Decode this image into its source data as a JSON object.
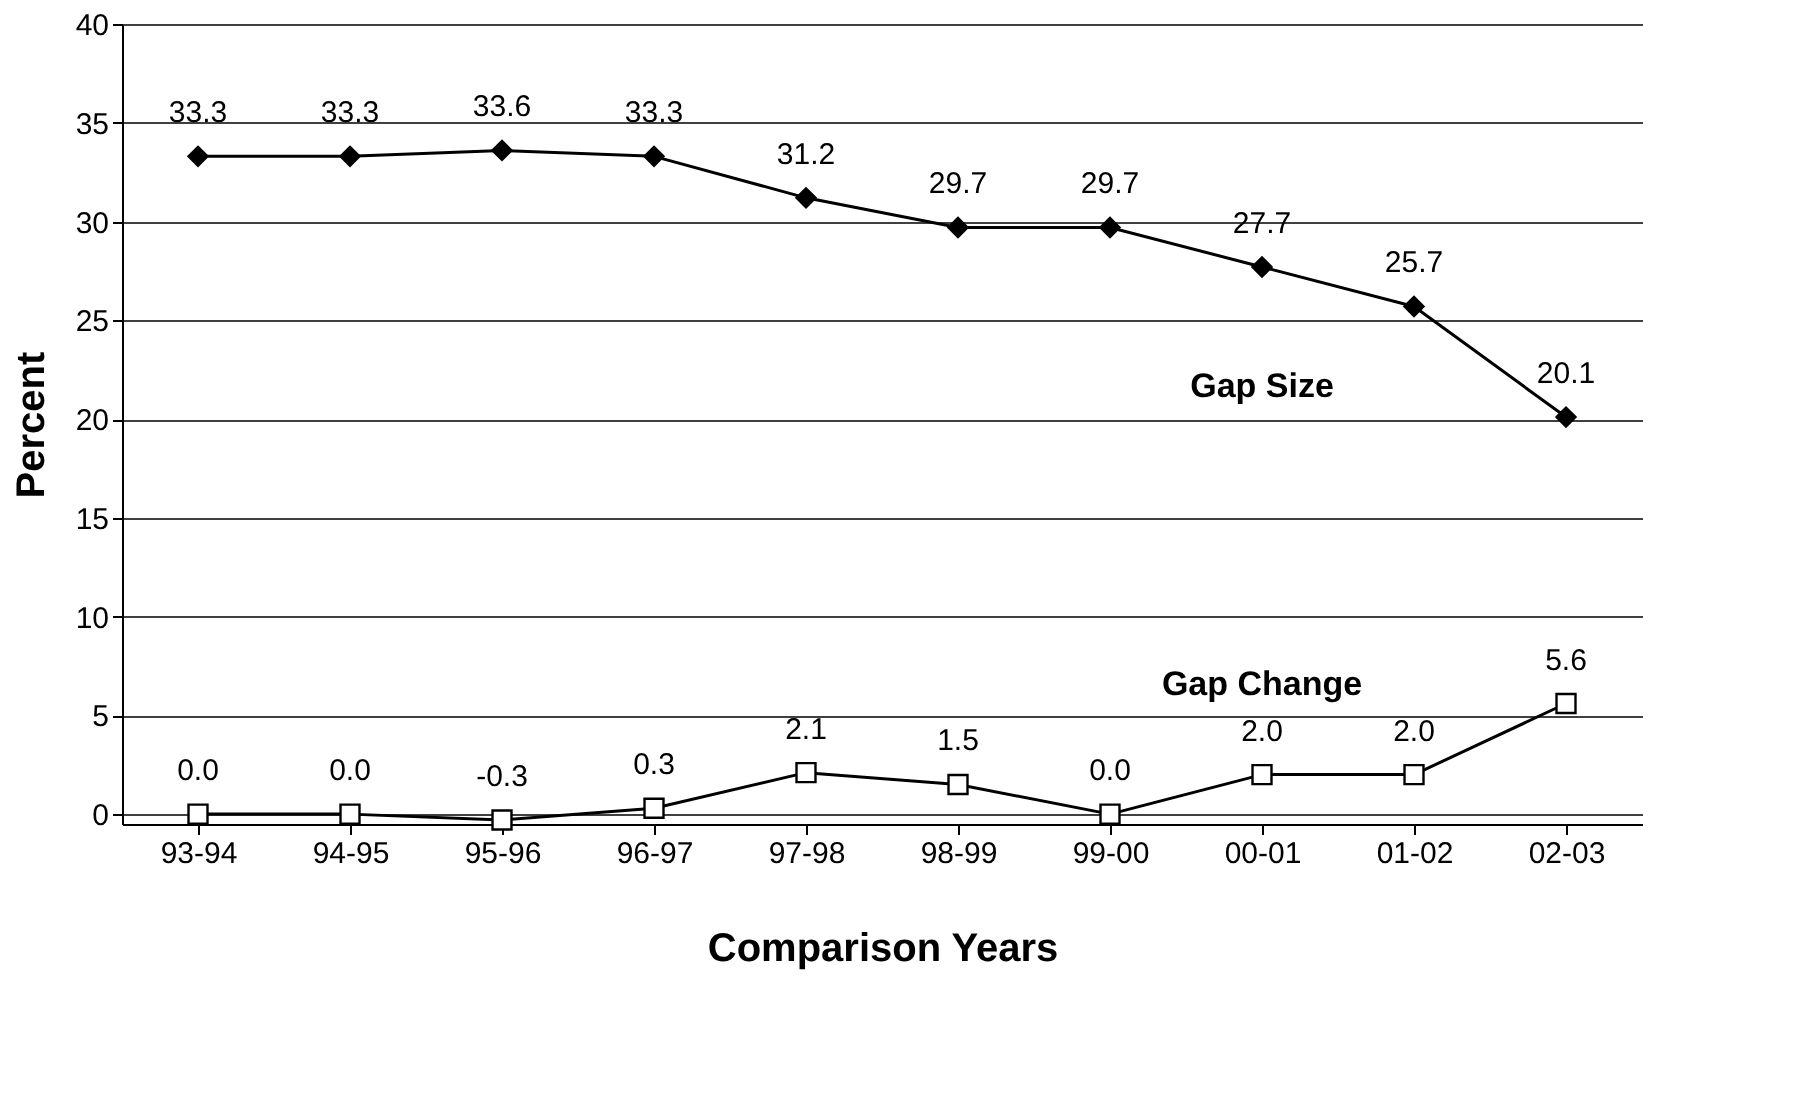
{
  "chart_data": {
    "type": "line",
    "xlabel": "Comparison Years",
    "ylabel": "Percent",
    "categories": [
      "93-94",
      "94-95",
      "95-96",
      "96-97",
      "97-98",
      "98-99",
      "99-00",
      "00-01",
      "01-02",
      "02-03"
    ],
    "series": [
      {
        "name": "Gap Size",
        "color": "#000000",
        "marker": "diamond",
        "values": [
          33.3,
          33.3,
          33.6,
          33.3,
          31.2,
          29.7,
          29.7,
          27.7,
          25.7,
          20.1
        ],
        "value_labels": [
          "33.3",
          "33.3",
          "33.6",
          "33.3",
          "31.2",
          "29.7",
          "29.7",
          "27.7",
          "25.7",
          "20.1"
        ]
      },
      {
        "name": "Gap Change",
        "color": "#000000",
        "marker": "square",
        "values": [
          0.0,
          0.0,
          -0.3,
          0.3,
          2.1,
          1.5,
          0.0,
          2.0,
          2.0,
          5.6
        ],
        "value_labels": [
          "0.0",
          "0.0",
          "-0.3",
          "0.3",
          "2.1",
          "1.5",
          "0.0",
          "2.0",
          "2.0",
          "5.6"
        ]
      }
    ],
    "ylim": [
      -0.5,
      40
    ],
    "yticks": [
      0,
      5,
      10,
      15,
      20,
      25,
      30,
      35,
      40
    ],
    "grid": "y",
    "line_style": "solid"
  }
}
